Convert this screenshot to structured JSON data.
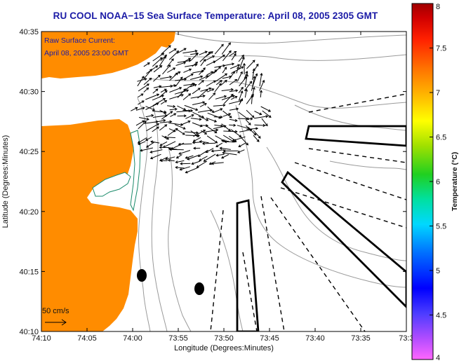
{
  "title": "RU COOL  NOAA−15  Sea Surface Temperature:  April 08, 2005 2305 GMT",
  "annotation": {
    "line1": "Raw Surface Current:",
    "line2": "April 08, 2005 23:00 GMT"
  },
  "scale_label": "50 cm/s",
  "axes": {
    "xlabel": "Longitude (Degrees:Minutes)",
    "ylabel": "Latitude (Degrees:Minutes)",
    "x_ticks": [
      "74:10",
      "74:05",
      "74:00",
      "73:55",
      "73:50",
      "73:45",
      "73:40",
      "73:35",
      "73:3"
    ],
    "y_ticks": [
      "40:35",
      "40:30",
      "40:25",
      "40:20",
      "40:15",
      "40:10"
    ]
  },
  "colorbar": {
    "label": "Temperature (°C)",
    "ticks": [
      "8",
      "7.5",
      "7",
      "6.5",
      "6",
      "5.5",
      "5",
      "4.5",
      "4"
    ],
    "min": 4,
    "max": 8
  },
  "colors": {
    "land": "#ff8c00",
    "title": "#1a1aa6",
    "bathymetry": "#9a9a9a"
  }
}
